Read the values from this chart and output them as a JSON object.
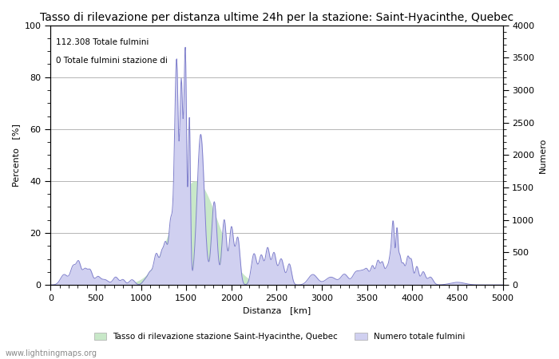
{
  "title": "Tasso di rilevazione per distanza ultime 24h per la stazione: Saint-Hyacinthe, Quebec",
  "xlabel": "Distanza   [km]",
  "ylabel_left": "Percento   [%]",
  "ylabel_right": "Numero",
  "annotation_line1": "112.308 Totale fulmini",
  "annotation_line2": "0 Totale fulmini stazione di",
  "xlim": [
    0,
    5000
  ],
  "ylim_left": [
    0,
    100
  ],
  "ylim_right": [
    0,
    4000
  ],
  "xticks": [
    0,
    500,
    1000,
    1500,
    2000,
    2500,
    3000,
    3500,
    4000,
    4500,
    5000
  ],
  "yticks_left": [
    0,
    20,
    40,
    60,
    80,
    100
  ],
  "yticks_right": [
    0,
    500,
    1000,
    1500,
    2000,
    2500,
    3000,
    3500,
    4000
  ],
  "legend_label_green": "Tasso di rilevazione stazione Saint-Hyacinthe, Quebec",
  "legend_label_blue": "Numero totale fulmini",
  "watermark": "www.lightningmaps.org",
  "line_color": "#8080cc",
  "fill_color_blue": "#d0d0f0",
  "fill_color_green": "#c8e8c8",
  "background_color": "#ffffff",
  "grid_color": "#aaaaaa",
  "title_fontsize": 10,
  "axis_fontsize": 8,
  "tick_fontsize": 8
}
